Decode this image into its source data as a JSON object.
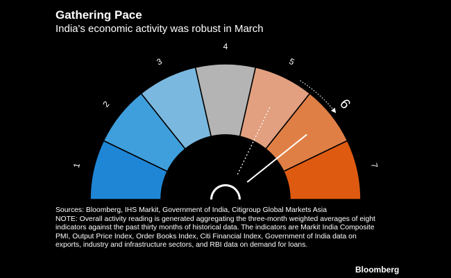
{
  "header": {
    "title": "Gathering Pace",
    "subtitle": "India's economic activity was robust in March"
  },
  "chart_data": {
    "type": "gauge",
    "title": "Gathering Pace",
    "subtitle": "India's economic activity was robust in March",
    "segments": [
      {
        "label": "1",
        "color": "#1f86d6"
      },
      {
        "label": "2",
        "color": "#3e9fdc"
      },
      {
        "label": "3",
        "color": "#7ab8e0"
      },
      {
        "label": "4",
        "color": "#b4b4b4"
      },
      {
        "label": "5",
        "color": "#e2a080"
      },
      {
        "label": "6",
        "color": "#e07f45"
      },
      {
        "label": "7",
        "color": "#de5a10"
      }
    ],
    "range": [
      0.5,
      7.5
    ],
    "needles": [
      {
        "name": "current",
        "value": 6.0,
        "style": "solid"
      },
      {
        "name": "previous",
        "value": 5.0,
        "style": "dotted"
      }
    ],
    "change_arrow": {
      "from": 5.25,
      "to": 6.0
    },
    "highlighted_label": "6"
  },
  "notes": {
    "text": "Sources: Bloomberg, IHS Markit, Government of India, Citigroup Global Markets Asia\nNOTE: Overall activity reading is generated aggregating the three-month weighted averages of eight indicators against the past thirty months of historical data. The indicators are Markit India Composite PMI, Output Price Index, Order Books Index, Citi Financial Index, Government of India data on exports, industry and infrastructure sectors, and RBI data on demand for loans."
  },
  "brand": {
    "label": "Bloomberg"
  }
}
